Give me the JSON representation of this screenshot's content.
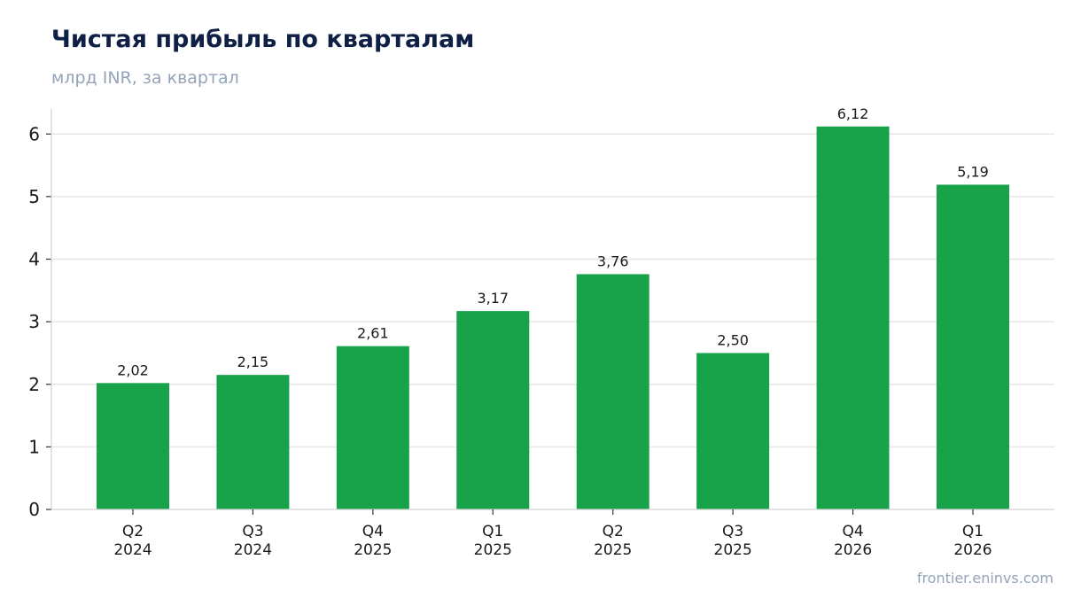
{
  "header": {
    "title": "Чистая прибыль по кварталам",
    "subtitle": "млрд INR, за квартал"
  },
  "footer": {
    "source": "frontier.eninvs.com"
  },
  "chart_data": {
    "type": "bar",
    "categories": [
      [
        "Q2",
        "2024"
      ],
      [
        "Q3",
        "2024"
      ],
      [
        "Q4",
        "2025"
      ],
      [
        "Q1",
        "2025"
      ],
      [
        "Q2",
        "2025"
      ],
      [
        "Q3",
        "2025"
      ],
      [
        "Q4",
        "2026"
      ],
      [
        "Q1",
        "2026"
      ]
    ],
    "values": [
      2.02,
      2.15,
      2.61,
      3.17,
      3.76,
      2.5,
      6.12,
      5.19
    ],
    "data_labels": [
      "2,02",
      "2,15",
      "2,61",
      "3,17",
      "3,76",
      "2,50",
      "6,12",
      "5,19"
    ],
    "yticks": [
      0,
      1,
      2,
      3,
      4,
      5,
      6
    ],
    "ylim": [
      0,
      6.4
    ],
    "grid": true,
    "legend": "none",
    "bar_color": "#18a34a"
  }
}
